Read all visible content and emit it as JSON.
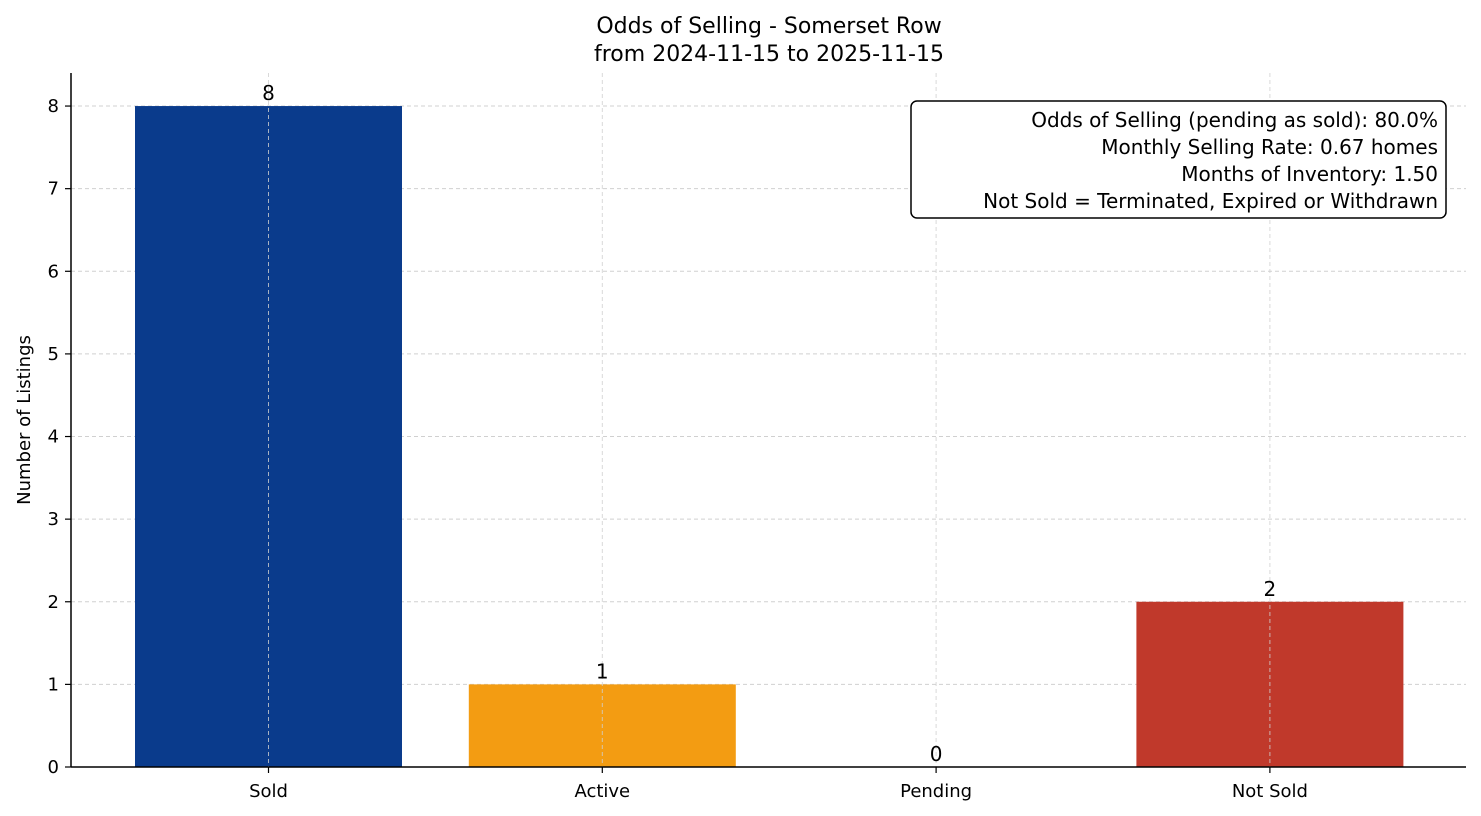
{
  "chart_data": {
    "type": "bar",
    "title": "Odds of Selling - Somerset Row",
    "subtitle": "from 2024-11-15 to 2025-11-15",
    "xlabel": "",
    "ylabel": "Number of Listings",
    "categories": [
      "Sold",
      "Active",
      "Pending",
      "Not Sold"
    ],
    "values": [
      8,
      1,
      0,
      2
    ],
    "data_labels": [
      "8",
      "1",
      "0",
      "2"
    ],
    "colors": [
      "#0a3b8c",
      "#f39c12",
      "#f39c12",
      "#c0392b"
    ],
    "ylim": [
      0,
      8.4
    ],
    "yticks": [
      0,
      1,
      2,
      3,
      4,
      5,
      6,
      7,
      8
    ],
    "grid": true,
    "annotation": {
      "placement": "top-right",
      "lines": [
        "Odds of Selling (pending as sold): 80.0%",
        "Monthly Selling Rate: 0.67 homes",
        "Months of Inventory: 1.50",
        "Not Sold = Terminated, Expired or Withdrawn"
      ]
    }
  }
}
